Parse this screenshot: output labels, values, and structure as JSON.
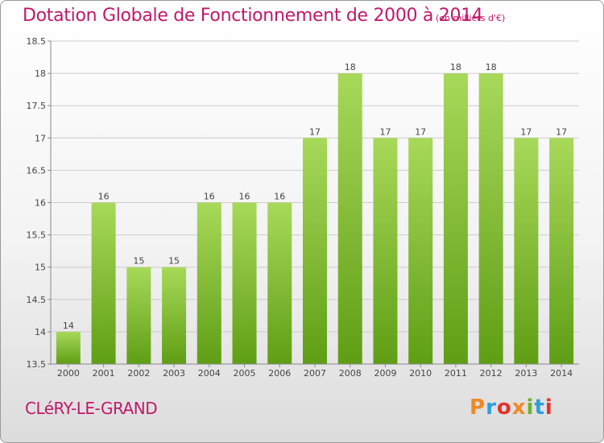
{
  "header": {
    "title": "Dotation Globale de Fonctionnement de 2000 à 2014",
    "subtitle": "(en milliers d'€)"
  },
  "footer": {
    "commune": "CLéRY-LE-GRAND",
    "logo_text": "Proxiti",
    "logo_colors": [
      "#f08a24",
      "#2f9fd8",
      "#e2332c",
      "#f08a24",
      "#6fb22f",
      "#2f9fd8",
      "#e2332c"
    ]
  },
  "colors": {
    "title": "#c0186b",
    "bar_light": "#a8d95a",
    "bar_dark": "#5f9e14",
    "grid": "#cccccc"
  },
  "chart_data": {
    "type": "bar",
    "title": "Dotation Globale de Fonctionnement de 2000 à 2014",
    "categories": [
      "2000",
      "2001",
      "2002",
      "2003",
      "2004",
      "2005",
      "2006",
      "2007",
      "2008",
      "2009",
      "2010",
      "2011",
      "2012",
      "2013",
      "2014"
    ],
    "values": [
      14,
      16,
      15,
      15,
      16,
      16,
      16,
      17,
      18,
      17,
      17,
      18,
      18,
      17,
      17
    ],
    "data_labels": [
      "14",
      "16",
      "15",
      "15",
      "16",
      "16",
      "16",
      "17",
      "18",
      "17",
      "17",
      "18",
      "18",
      "17",
      "17"
    ],
    "ylim": [
      13.5,
      18.5
    ],
    "yticks": [
      13.5,
      14,
      14.5,
      15,
      15.5,
      16,
      16.5,
      17,
      17.5,
      18,
      18.5
    ],
    "ytick_labels": [
      "13.5",
      "14",
      "14.5",
      "15",
      "15.5",
      "16",
      "16.5",
      "17",
      "17.5",
      "18",
      "18.5"
    ],
    "grid": true,
    "xlabel": "",
    "ylabel": ""
  }
}
